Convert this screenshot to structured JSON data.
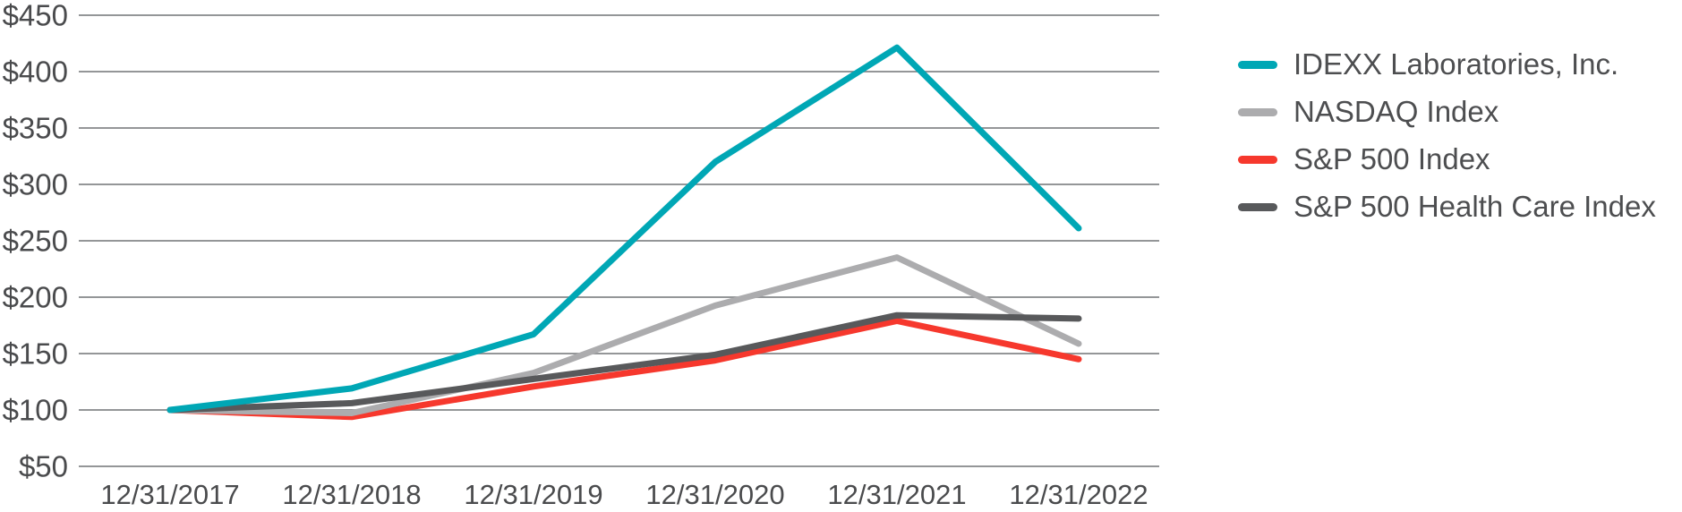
{
  "chart_data": {
    "type": "line",
    "title": "",
    "xlabel": "",
    "ylabel": "",
    "x_tick_labels": [
      "12/31/2017",
      "12/31/2018",
      "12/31/2019",
      "12/31/2020",
      "12/31/2021",
      "12/31/2022"
    ],
    "y_tick_labels": [
      "$450",
      "$400",
      "$350",
      "$300",
      "$250",
      "$200",
      "$150",
      "$100",
      "$50"
    ],
    "y_tick_values": [
      450,
      400,
      350,
      300,
      250,
      200,
      150,
      100,
      50
    ],
    "ylim": [
      50,
      450
    ],
    "grid": "horizontal",
    "legend_position": "right",
    "series": [
      {
        "key": "idexx",
        "name": "IDEXX Laboratories, Inc.",
        "color": "#00a7b5",
        "values": [
          100,
          119.1,
          167.1,
          319.9,
          421.3,
          261.1
        ]
      },
      {
        "key": "nasdaq",
        "name": "NASDAQ Index",
        "color": "#acacae",
        "values": [
          100,
          97.2,
          132.8,
          192.5,
          235.2,
          158.7
        ]
      },
      {
        "key": "sp500",
        "name": "S&P 500 Index",
        "color": "#f6382d",
        "values": [
          100,
          93.8,
          120.8,
          144.0,
          179.0,
          145.0
        ]
      },
      {
        "key": "sp500-healthcare",
        "name": "S&P 500 Health Care Index",
        "color": "#58595b",
        "values": [
          100,
          106.0,
          127.5,
          149.0,
          184.0,
          181.0
        ]
      }
    ],
    "colors": {
      "gridline": "#85878a",
      "axis_text": "#4a4b4d"
    }
  }
}
